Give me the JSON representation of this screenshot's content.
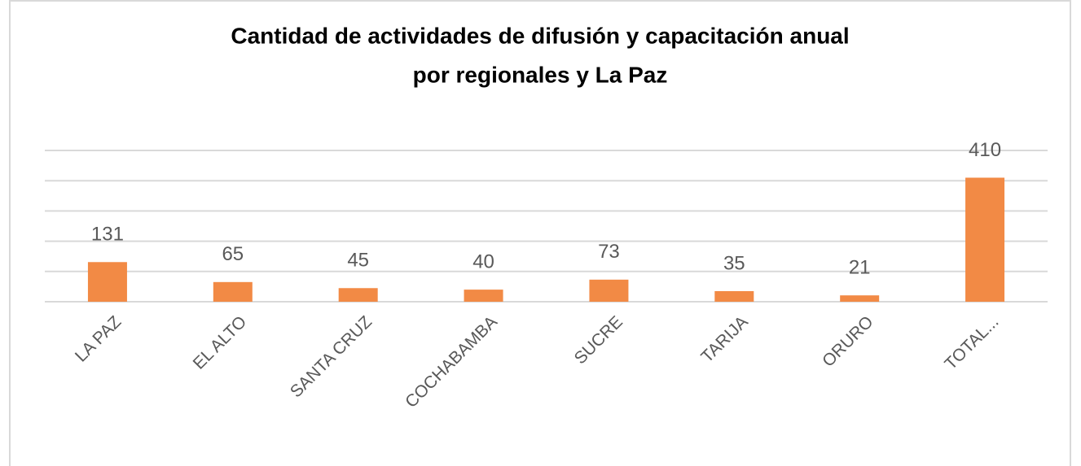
{
  "chart_data": {
    "type": "bar",
    "title": [
      "Cantidad de actividades de  difusión y capacitación anual",
      "por regionales y La Paz"
    ],
    "categories": [
      "LA PAZ",
      "EL ALTO",
      "SANTA CRUZ",
      "COCHABAMBA",
      "SUCRE",
      "TARIJA",
      "ORURO",
      "TOTAL..."
    ],
    "values": [
      131,
      65,
      45,
      40,
      73,
      35,
      21,
      410
    ],
    "color": "#f28a45",
    "ylim": [
      0,
      500
    ],
    "yticks": [
      0,
      100,
      200,
      300,
      400,
      500
    ],
    "grid": true
  }
}
